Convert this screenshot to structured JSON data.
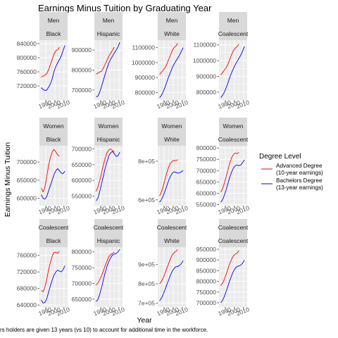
{
  "chart_data": {
    "type": "line",
    "title": "Earnings Minus Tuition by Graduating Year",
    "xlabel": "Year",
    "ylabel": "Earnings Minus Tuition",
    "caption": "rs holders are given 13 years (vs 10) to account for additional time in the workforce.",
    "legend": {
      "title": "Degree Level",
      "placement": "right",
      "entries": [
        {
          "line1": "Advanced Degree",
          "line2": "(10-year earnings)",
          "color": "#ff0000"
        },
        {
          "line1": "Bachelors Degree",
          "line2": "(13-year earnings)",
          "color": "#0000ff"
        }
      ]
    },
    "x_ticks": [
      "1990",
      "2000",
      "2010"
    ],
    "xlim": [
      1983,
      2014
    ],
    "years_adv": [
      1985,
      1987,
      1989,
      1991,
      1993,
      1995,
      1997,
      1999,
      2001,
      2003,
      2005
    ],
    "years_bach": [
      1985,
      1987,
      1989,
      1991,
      1993,
      1995,
      1997,
      1999,
      2001,
      2003,
      2005,
      2007,
      2009,
      2011
    ],
    "panels": [
      {
        "row": 0,
        "col": 0,
        "strip1": "Men",
        "strip2": "Black",
        "ylim": [
          680000,
          850000
        ],
        "yticks": [
          720000,
          760000,
          800000,
          840000
        ],
        "ytick_labels": [
          "720000",
          "760000",
          "800000",
          "840000"
        ],
        "adv": [
          745000,
          748000,
          750000,
          755000,
          765000,
          780000,
          795000,
          810000,
          820000,
          822000,
          830000
        ],
        "bach": [
          715000,
          710000,
          707000,
          708000,
          716000,
          725000,
          740000,
          760000,
          775000,
          785000,
          795000,
          805000,
          820000,
          835000
        ]
      },
      {
        "row": 0,
        "col": 1,
        "strip1": "Men",
        "strip2": "Hispanic",
        "ylim": [
          650000,
          950000
        ],
        "yticks": [
          700000,
          800000,
          900000
        ],
        "ytick_labels": [
          "700000",
          "800000",
          "900000"
        ],
        "adv": [
          780000,
          785000,
          790000,
          795000,
          810000,
          830000,
          850000,
          870000,
          885000,
          900000,
          915000
        ],
        "bach": [
          665000,
          670000,
          690000,
          720000,
          750000,
          780000,
          810000,
          835000,
          855000,
          870000,
          885000,
          900000,
          915000,
          940000
        ]
      },
      {
        "row": 0,
        "col": 2,
        "strip1": "Men",
        "strip2": "White",
        "ylim": [
          750000,
          1150000
        ],
        "yticks": [
          800000,
          900000,
          1000000,
          1100000
        ],
        "ytick_labels": [
          "800000",
          "900000",
          "1000000",
          "1100000"
        ],
        "adv": [
          920000,
          935000,
          950000,
          965000,
          990000,
          1020000,
          1050000,
          1080000,
          1100000,
          1110000,
          1130000
        ],
        "bach": [
          765000,
          780000,
          805000,
          835000,
          870000,
          905000,
          935000,
          965000,
          990000,
          1010000,
          1030000,
          1050000,
          1075000,
          1100000
        ]
      },
      {
        "row": 0,
        "col": 3,
        "strip1": "Men",
        "strip2": "Coalescent",
        "ylim": [
          750000,
          1130000
        ],
        "yticks": [
          800000,
          900000,
          1000000,
          1100000
        ],
        "ytick_labels": [
          "800000",
          "900000",
          "1000000",
          "1100000"
        ],
        "adv": [
          910000,
          925000,
          940000,
          955000,
          980000,
          1010000,
          1040000,
          1065000,
          1080000,
          1090000,
          1105000
        ],
        "bach": [
          765000,
          780000,
          800000,
          830000,
          860000,
          895000,
          925000,
          950000,
          975000,
          995000,
          1015000,
          1035000,
          1060000,
          1090000
        ]
      },
      {
        "row": 1,
        "col": 0,
        "strip1": "Women",
        "strip2": "Black",
        "ylim": [
          580000,
          745000
        ],
        "yticks": [
          600000,
          650000,
          700000
        ],
        "ytick_labels": [
          "600000",
          "650000",
          "700000"
        ],
        "adv": [
          628000,
          618000,
          630000,
          660000,
          690000,
          712000,
          728000,
          735000,
          728000,
          720000,
          716000
        ],
        "bach": [
          610000,
          600000,
          598000,
          605000,
          620000,
          635000,
          650000,
          665000,
          676000,
          682000,
          676000,
          670000,
          668000,
          675000
        ]
      },
      {
        "row": 1,
        "col": 1,
        "strip1": "Women",
        "strip2": "Hispanic",
        "ylim": [
          520000,
          710000
        ],
        "yticks": [
          550000,
          600000,
          650000,
          700000
        ],
        "ytick_labels": [
          "550000",
          "600000",
          "650000",
          "700000"
        ],
        "adv": [
          565000,
          580000,
          600000,
          625000,
          650000,
          672000,
          688000,
          697000,
          700000,
          695000,
          690000
        ],
        "bach": [
          535000,
          545000,
          565000,
          590000,
          615000,
          640000,
          660000,
          678000,
          688000,
          692000,
          685000,
          676000,
          678000,
          690000
        ]
      },
      {
        "row": 1,
        "col": 2,
        "strip1": "Women",
        "strip2": "White",
        "ylim": [
          570000,
          880000
        ],
        "yticks": [
          600000,
          800000
        ],
        "ytick_labels": [
          "6e+05",
          "8e+05"
        ],
        "adv": [
          620000,
          640000,
          670000,
          705000,
          740000,
          770000,
          790000,
          800000,
          805000,
          802000,
          808000
        ],
        "bach": [
          588000,
          600000,
          620000,
          645000,
          672000,
          700000,
          722000,
          738000,
          745000,
          742000,
          738000,
          740000,
          745000,
          752000
        ]
      },
      {
        "row": 1,
        "col": 3,
        "strip1": "Women",
        "strip2": "Coalescent",
        "ylim": [
          545000,
          810000
        ],
        "yticks": [
          550000,
          600000,
          650000,
          700000,
          750000,
          800000
        ],
        "ytick_labels": [
          "550000",
          "600000",
          "650000",
          "700000",
          "750000",
          "800000"
        ],
        "adv": [
          605000,
          620000,
          645000,
          675000,
          705000,
          735000,
          758000,
          772000,
          778000,
          775000,
          780000
        ],
        "bach": [
          560000,
          572000,
          592000,
          617000,
          645000,
          672000,
          695000,
          712000,
          722000,
          725000,
          722000,
          725000,
          735000,
          748000
        ]
      },
      {
        "row": 2,
        "col": 0,
        "strip1": "Coalescent",
        "strip2": "Black",
        "ylim": [
          635000,
          780000
        ],
        "yticks": [
          640000,
          680000,
          720000,
          760000
        ],
        "ytick_labels": [
          "640000",
          "680000",
          "720000",
          "760000"
        ],
        "adv": [
          675000,
          672000,
          682000,
          702000,
          724000,
          742000,
          758000,
          767000,
          768000,
          765000,
          770000
        ],
        "bach": [
          652000,
          645000,
          646000,
          655000,
          670000,
          686000,
          700000,
          712000,
          720000,
          724000,
          722000,
          720000,
          725000,
          735000
        ]
      },
      {
        "row": 2,
        "col": 1,
        "strip1": "Coalescent",
        "strip2": "Hispanic",
        "ylim": [
          625000,
          815000
        ],
        "yticks": [
          650000,
          700000,
          750000,
          800000
        ],
        "ytick_labels": [
          "650000",
          "700000",
          "750000",
          "800000"
        ],
        "adv": [
          695000,
          702000,
          712000,
          725000,
          740000,
          757000,
          772000,
          785000,
          792000,
          795000,
          800000
        ],
        "bach": [
          642000,
          650000,
          666000,
          688000,
          712000,
          735000,
          755000,
          770000,
          782000,
          790000,
          793000,
          795000,
          800000,
          808000
        ]
      },
      {
        "row": 2,
        "col": 2,
        "strip1": "Coalescent",
        "strip2": "White",
        "ylim": [
          680000,
          990000
        ],
        "yticks": [
          700000,
          800000,
          900000
        ],
        "ytick_labels": [
          "7e+05",
          "8e+05",
          "9e+05"
        ],
        "adv": [
          800000,
          812000,
          830000,
          855000,
          880000,
          905000,
          930000,
          950000,
          962000,
          968000,
          978000
        ],
        "bach": [
          712000,
          725000,
          745000,
          770000,
          795000,
          820000,
          845000,
          865000,
          880000,
          888000,
          890000,
          895000,
          905000,
          920000
        ]
      },
      {
        "row": 2,
        "col": 3,
        "strip1": "Coalescent",
        "strip2": "Coalescent",
        "ylim": [
          680000,
          960000
        ],
        "yticks": [
          700000,
          750000,
          800000,
          850000,
          900000,
          950000
        ],
        "ytick_labels": [
          "700000",
          "750000",
          "800000",
          "850000",
          "900000",
          "950000"
        ],
        "adv": [
          780000,
          792000,
          810000,
          835000,
          860000,
          885000,
          905000,
          920000,
          928000,
          932000,
          945000
        ],
        "bach": [
          700000,
          712000,
          730000,
          755000,
          780000,
          805000,
          828000,
          848000,
          862000,
          870000,
          872000,
          876000,
          885000,
          900000
        ]
      }
    ]
  }
}
